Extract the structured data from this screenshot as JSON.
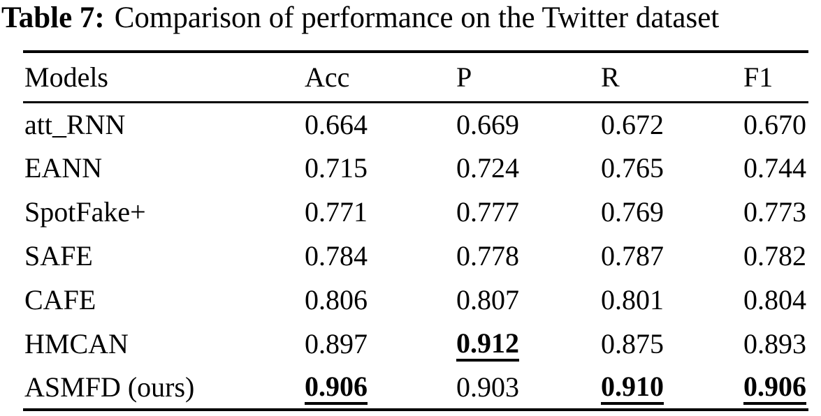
{
  "caption": {
    "label": "Table 7:",
    "text": "Comparison of performance on the Twitter dataset"
  },
  "table": {
    "headers": [
      "Models",
      "Acc",
      "P",
      "R",
      "F1"
    ],
    "rows": [
      {
        "model": "att_RNN",
        "cells": [
          {
            "text": "0.664",
            "best": false
          },
          {
            "text": "0.669",
            "best": false
          },
          {
            "text": "0.672",
            "best": false
          },
          {
            "text": "0.670",
            "best": false
          }
        ]
      },
      {
        "model": "EANN",
        "cells": [
          {
            "text": "0.715",
            "best": false
          },
          {
            "text": "0.724",
            "best": false
          },
          {
            "text": "0.765",
            "best": false
          },
          {
            "text": "0.744",
            "best": false
          }
        ]
      },
      {
        "model": "SpotFake+",
        "cells": [
          {
            "text": "0.771",
            "best": false
          },
          {
            "text": "0.777",
            "best": false
          },
          {
            "text": "0.769",
            "best": false
          },
          {
            "text": "0.773",
            "best": false
          }
        ]
      },
      {
        "model": "SAFE",
        "cells": [
          {
            "text": "0.784",
            "best": false
          },
          {
            "text": "0.778",
            "best": false
          },
          {
            "text": "0.787",
            "best": false
          },
          {
            "text": "0.782",
            "best": false
          }
        ]
      },
      {
        "model": "CAFE",
        "cells": [
          {
            "text": "0.806",
            "best": false
          },
          {
            "text": "0.807",
            "best": false
          },
          {
            "text": "0.801",
            "best": false
          },
          {
            "text": "0.804",
            "best": false
          }
        ]
      },
      {
        "model": "HMCAN",
        "cells": [
          {
            "text": "0.897",
            "best": false
          },
          {
            "text": "0.912",
            "best": true
          },
          {
            "text": "0.875",
            "best": false
          },
          {
            "text": "0.893",
            "best": false
          }
        ]
      },
      {
        "model": "ASMFD (ours)",
        "cells": [
          {
            "text": "0.906",
            "best": true
          },
          {
            "text": "0.903",
            "best": false
          },
          {
            "text": "0.910",
            "best": true
          },
          {
            "text": "0.906",
            "best": true
          }
        ]
      }
    ]
  }
}
